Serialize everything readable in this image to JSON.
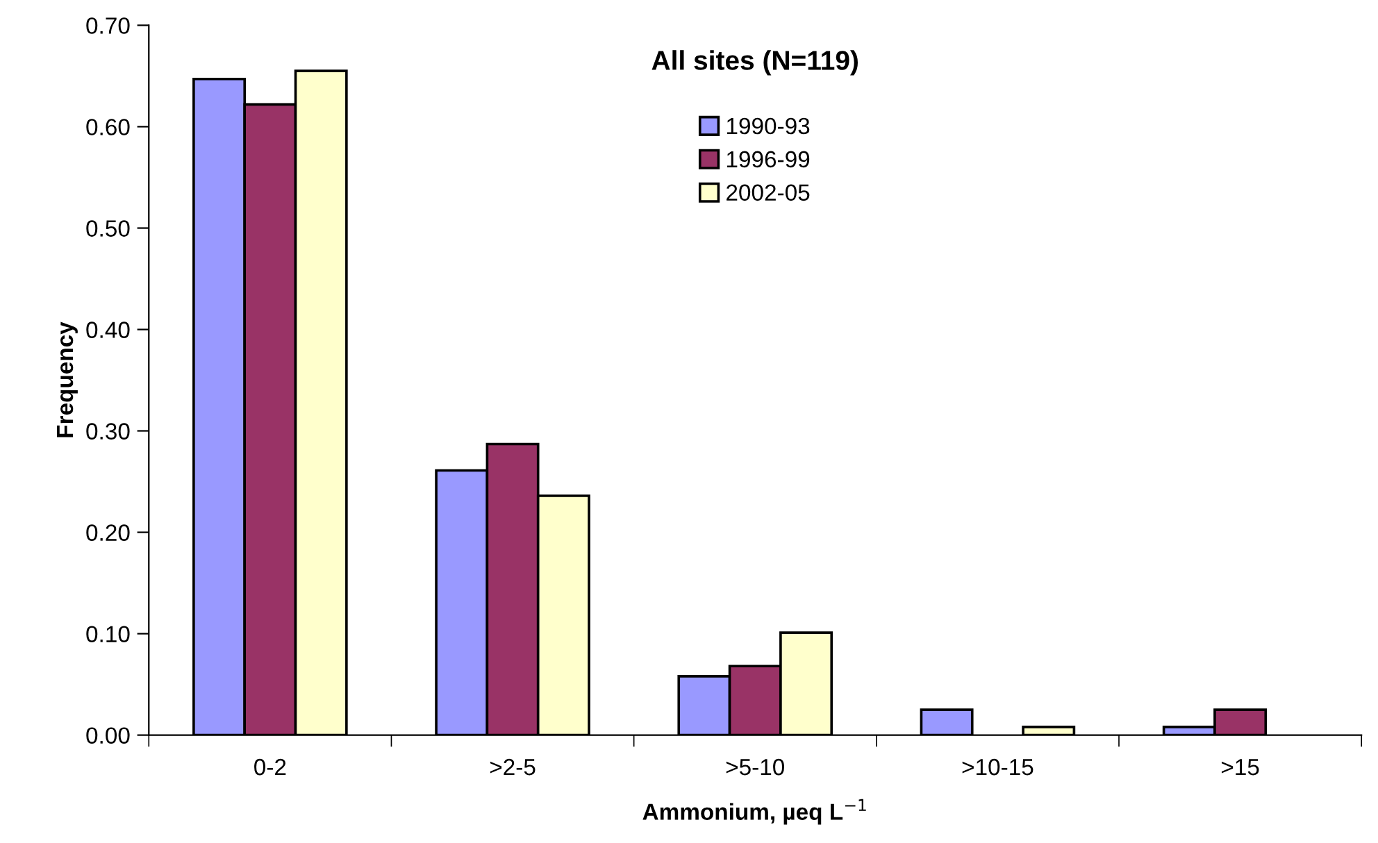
{
  "chart_data": {
    "type": "bar",
    "title": "All sites (N=119)",
    "xlabel": "Ammonium, µeq L$^{−1}$",
    "ylabel": "Frequency",
    "categories": [
      "0-2",
      ">2-5",
      ">5-10",
      ">10-15",
      ">15"
    ],
    "series": [
      {
        "name": "1990-93",
        "color": "#9999ff",
        "values": [
          0.647,
          0.261,
          0.058,
          0.025,
          0.008
        ]
      },
      {
        "name": "1996-99",
        "color": "#993366",
        "values": [
          0.622,
          0.287,
          0.068,
          null,
          0.025
        ]
      },
      {
        "name": "2002-05",
        "color": "#ffffcc",
        "values": [
          0.655,
          0.236,
          0.101,
          0.008,
          null
        ]
      }
    ],
    "ylim": [
      0,
      0.7
    ],
    "yticks": [
      {
        "value": 0,
        "label": "0.00"
      },
      {
        "value": 0.1,
        "label": "0.10"
      },
      {
        "value": 0.2,
        "label": "0.20"
      },
      {
        "value": 0.3,
        "label": "0.30"
      },
      {
        "value": 0.4,
        "label": "0.40"
      },
      {
        "value": 0.5,
        "label": "0.50"
      },
      {
        "value": 0.6,
        "label": "0.60"
      },
      {
        "value": 0.7,
        "label": "0.70"
      }
    ],
    "grid": false,
    "legend": "top"
  }
}
